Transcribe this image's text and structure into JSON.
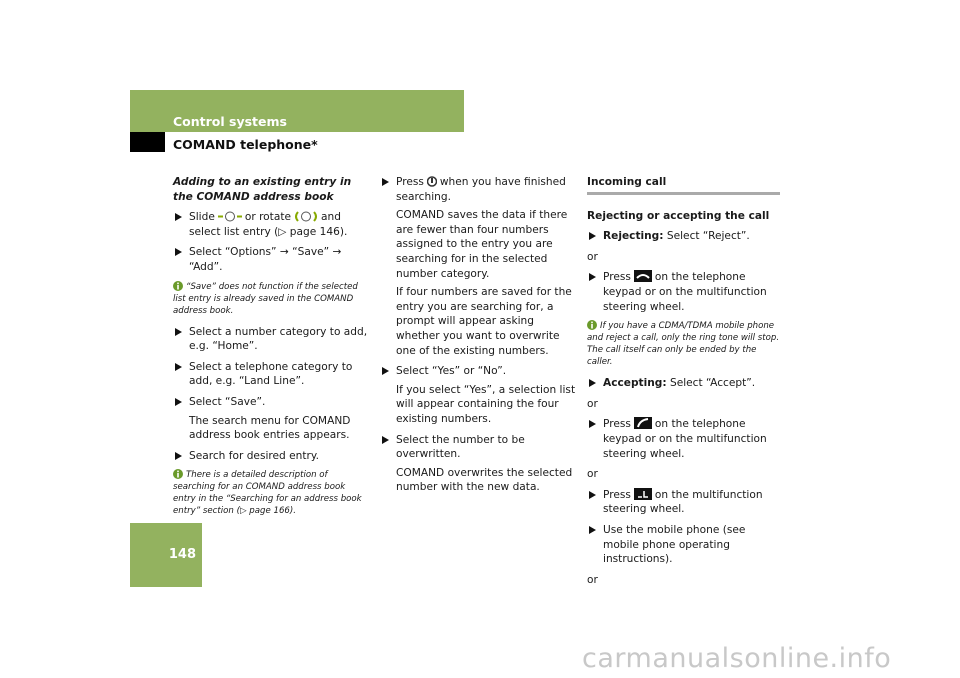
{
  "header": {
    "section": "Control systems",
    "subsection": "COMAND telephone*"
  },
  "page_number": "148",
  "left": {
    "heading": "Adding to an existing entry in the COMAND address book",
    "items": [
      {
        "parts": [
          "Slide",
          "or rotate",
          "and select list entry (▷ page 146)."
        ]
      },
      {
        "text": "Select “Options” → “Save” → “Add”."
      },
      {
        "note": "“Save” does not function if the selected list entry is already saved in the COMAND address book."
      },
      {
        "text": "Select a number category to add, e.g. “Home”."
      },
      {
        "text": "Select a telephone category to add, e.g. “Land Line”."
      },
      {
        "text": "Select “Save”.",
        "details": [
          "The search menu for COMAND address book entries appears."
        ]
      },
      {
        "text": "Search for desired entry."
      },
      {
        "note": "There is a detailed description of searching for an COMAND address book entry in the “Searching for an address book entry” section (▷ page 166)."
      }
    ]
  },
  "middle": {
    "items": [
      {
        "parts": [
          "Press",
          "when you have finished searching."
        ],
        "details": [
          "COMAND saves the data if there are fewer than four numbers assigned to the entry you are searching for in the selected number category.",
          "If four numbers are saved for the entry you are searching for, a prompt will appear asking whether you want to overwrite one of the existing numbers."
        ]
      },
      {
        "text": "Select “Yes” or “No”.",
        "details": [
          "If you select “Yes”, a selection list will appear containing the four existing numbers."
        ]
      },
      {
        "text": "Select the number to be overwritten.",
        "details": [
          "COMAND overwrites the selected number with the new data."
        ]
      }
    ]
  },
  "right": {
    "heading": "Incoming call",
    "subheading": "Rejecting or accepting the call",
    "items": [
      {
        "label": "Rejecting:",
        "text": "Select “Reject”."
      },
      {
        "or": "or"
      },
      {
        "parts": [
          "Press",
          "on the telephone keypad or on the multifunction steering wheel."
        ]
      },
      {
        "note": "If you have a CDMA/TDMA mobile phone and reject a call, only the ring tone will stop. The call itself can only be ended by the caller."
      },
      {
        "label": "Accepting:",
        "text": "Select “Accept”."
      },
      {
        "or": "or"
      },
      {
        "parts": [
          "Press",
          "on the telephone keypad or on the multifunction steering wheel."
        ]
      },
      {
        "or": "or"
      },
      {
        "parts": [
          "Press",
          "on the multifunction steering wheel."
        ]
      },
      {
        "text": "Use the mobile phone (see mobile phone operating instructions)."
      },
      {
        "or": "or"
      }
    ]
  },
  "watermark": "carmanualsonline.info"
}
